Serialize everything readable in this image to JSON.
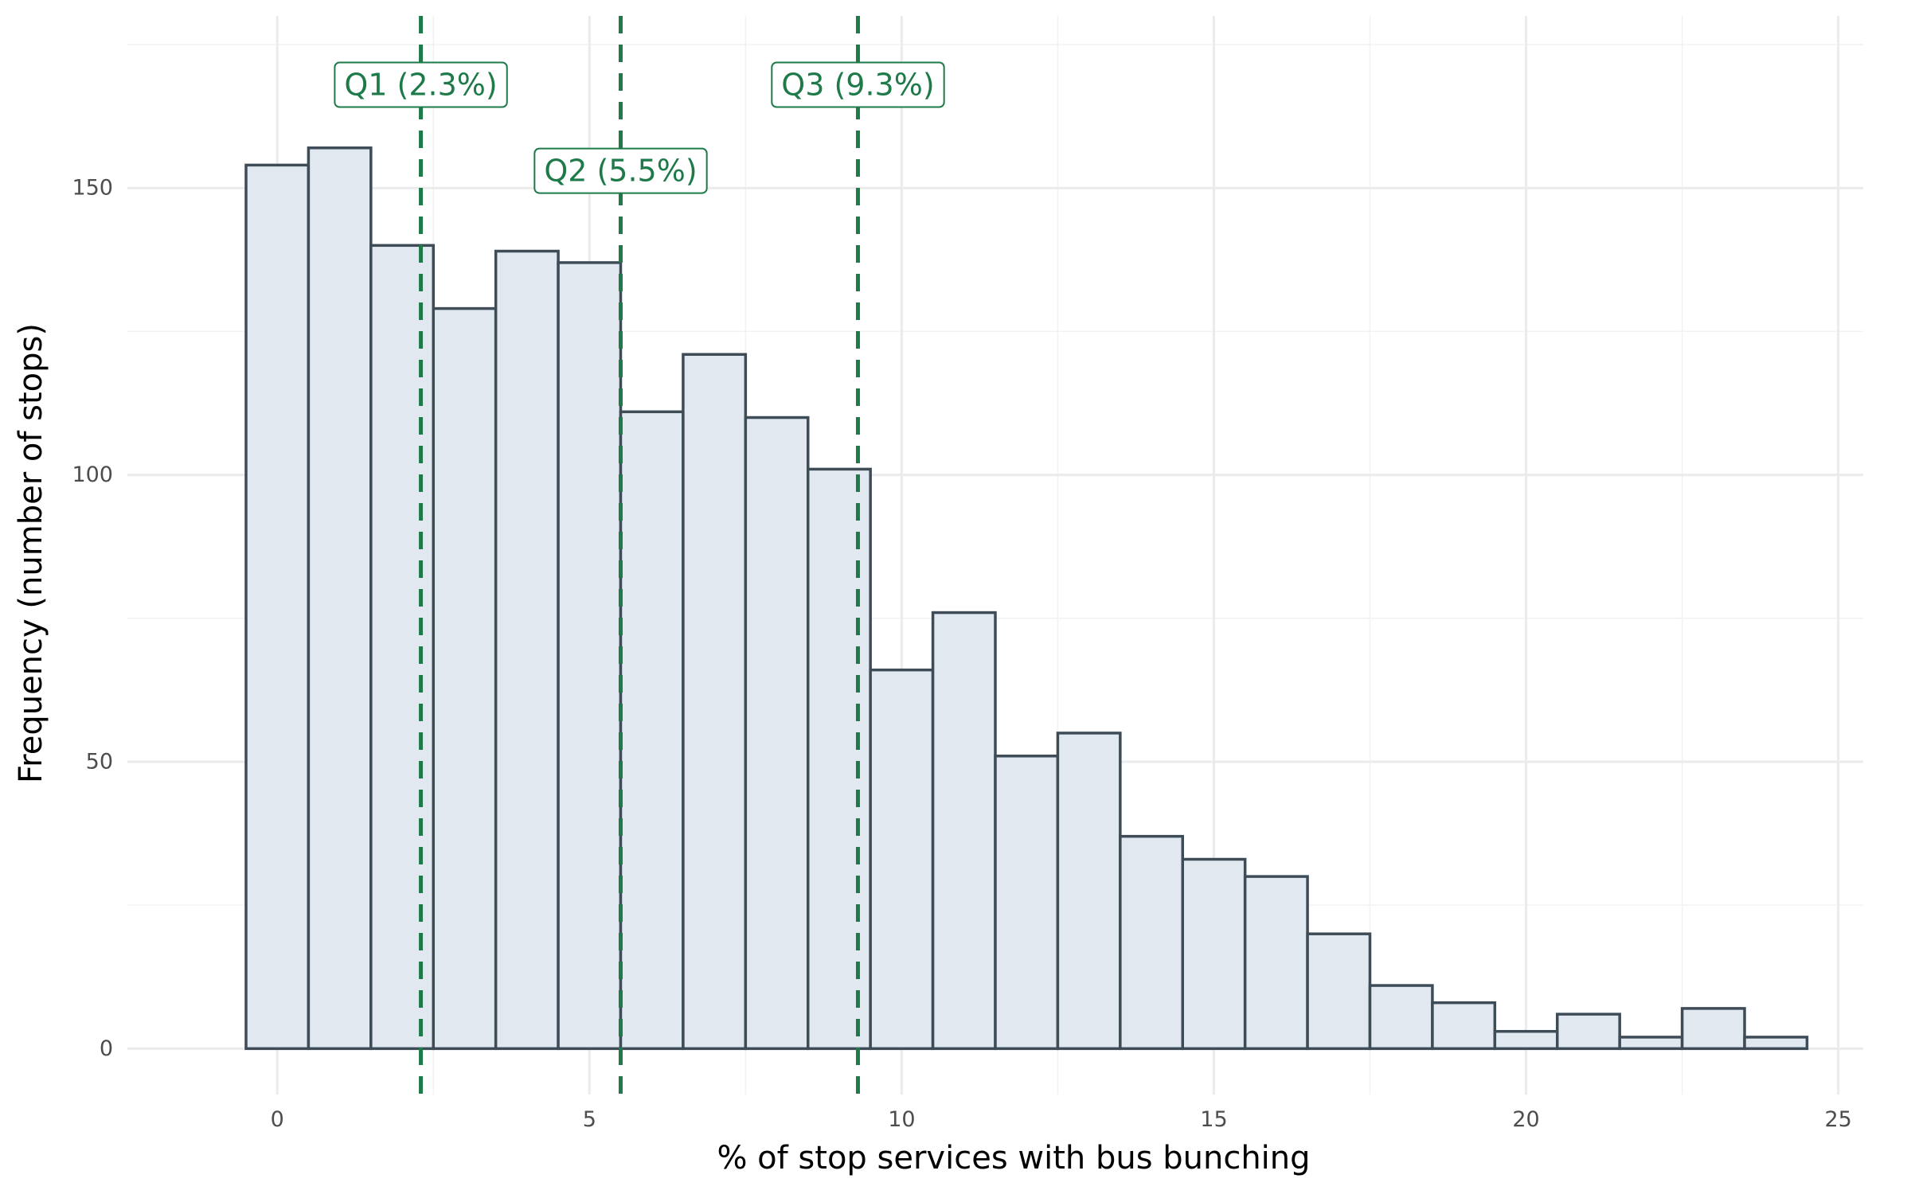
{
  "chart_data": {
    "type": "bar",
    "title": "",
    "xlabel": "% of stop services with bus bunching",
    "ylabel": "Frequency (number of stops)",
    "x": [
      0,
      1,
      2,
      3,
      4,
      5,
      6,
      7,
      8,
      9,
      10,
      11,
      12,
      13,
      14,
      15,
      16,
      17,
      18,
      19,
      20,
      21,
      22,
      23,
      24
    ],
    "values": [
      154,
      157,
      140,
      129,
      139,
      137,
      111,
      121,
      110,
      101,
      66,
      76,
      51,
      55,
      37,
      33,
      30,
      20,
      11,
      8,
      3,
      6,
      2,
      7,
      2
    ],
    "bin_width": 1,
    "xlim": [
      -2.4,
      25.4
    ],
    "ylim": [
      -8,
      180
    ],
    "x_ticks": [
      0,
      5,
      10,
      15,
      20,
      25
    ],
    "x_tick_labels": [
      "0",
      "5",
      "10",
      "15",
      "20",
      "25"
    ],
    "y_ticks": [
      0,
      50,
      100,
      150
    ],
    "y_tick_labels": [
      "0",
      "50",
      "100",
      "150"
    ],
    "grid": true,
    "quantiles": [
      {
        "name": "Q1",
        "value": 2.3,
        "label": "Q1 (2.3%)",
        "label_y": 168
      },
      {
        "name": "Q2",
        "value": 5.5,
        "label": "Q2 (5.5%)",
        "label_y": 153
      },
      {
        "name": "Q3",
        "value": 9.3,
        "label": "Q3 (9.3%)",
        "label_y": 168
      }
    ],
    "colors": {
      "bar_fill": "#e1e8ef",
      "bar_outline": "#3e4c58",
      "quantile": "#1f7a4a",
      "grid": "#ebebeb"
    }
  }
}
